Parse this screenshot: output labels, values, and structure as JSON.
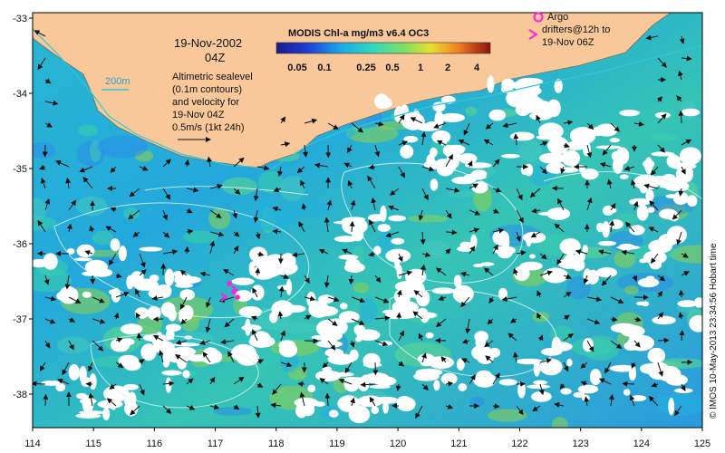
{
  "map": {
    "date_label": "19-Nov-2002",
    "time_label": "04Z",
    "colorbar_title": "MODIS Chl-a mg/m3 v6.4 OC3",
    "colorbar_ticks": [
      "0.05",
      "0.1",
      "0.25",
      "0.5",
      "1",
      "2",
      "4"
    ],
    "contour_label": "200m",
    "legend_lines": [
      "Altimetric sealevel",
      "(0.1m contours)",
      "and velocity for",
      "19-Nov 04Z",
      "0.5m/s (1kt 24h)"
    ],
    "argo_lines": [
      "Argo",
      "drifters@12h to",
      "19-Nov 06Z"
    ],
    "credit": "© IMOS 10-May-2013 23:34:56 Hobart time",
    "lon_ticks": [
      "114",
      "115",
      "116",
      "117",
      "118",
      "119",
      "120",
      "121",
      "122",
      "123",
      "124",
      "125"
    ],
    "lat_ticks": [
      "-33",
      "-34",
      "-35",
      "-36",
      "-37",
      "-38"
    ],
    "colors": {
      "land": "#f8c89a",
      "cloud": "#ffffff",
      "ocean_low": "#1fa6d8",
      "ocean_mid": "#3ad0a8",
      "ocean_high": "#8fd24a",
      "argo": "#ff22dd",
      "contour": "#d8f4f0",
      "isobath": "#2fc8d8"
    }
  }
}
